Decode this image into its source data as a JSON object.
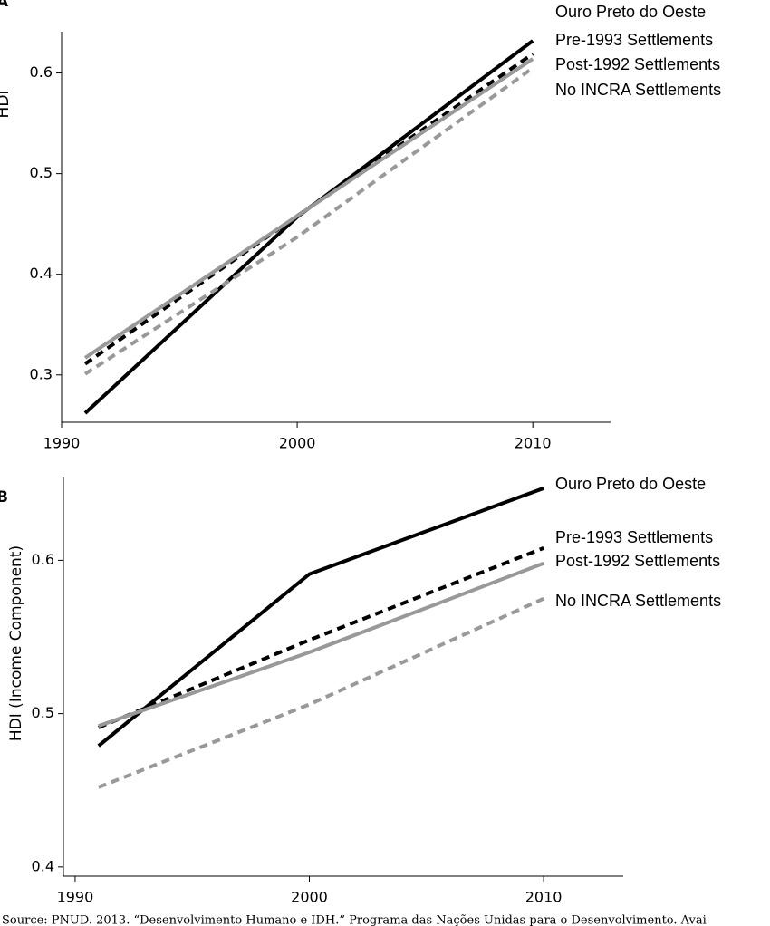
{
  "chart_data": [
    {
      "type": "line",
      "panel": "A",
      "y_label": "HDI",
      "x": [
        1991,
        2000,
        2010
      ],
      "xlim": [
        1990,
        2013.3
      ],
      "xticks": [
        1990,
        2000,
        2010
      ],
      "ylim": [
        0.253,
        0.641
      ],
      "yticks": [
        0.3,
        0.4,
        0.5,
        0.6
      ],
      "series": [
        {
          "name": "Ouro Preto do Oeste",
          "color": "#000000",
          "dashed": false,
          "values": [
            0.262,
            0.457,
            0.632
          ]
        },
        {
          "name": "Pre-1993 Settlements",
          "color": "#000000",
          "dashed": true,
          "values": [
            0.311,
            0.458,
            0.619
          ]
        },
        {
          "name": "Post-1992 Settlements",
          "color": "#999999",
          "dashed": false,
          "values": [
            0.317,
            0.458,
            0.614
          ]
        },
        {
          "name": "No INCRA Settlements",
          "color": "#999999",
          "dashed": true,
          "values": [
            0.301,
            0.437,
            0.605
          ]
        }
      ]
    },
    {
      "type": "line",
      "panel": "B",
      "y_label": "HDI (Income Component)",
      "x": [
        1991,
        2000,
        2010
      ],
      "xlim": [
        1989.5,
        2013.4
      ],
      "xticks": [
        1990,
        2000,
        2010
      ],
      "ylim": [
        0.394,
        0.654
      ],
      "yticks": [
        0.4,
        0.5,
        0.6
      ],
      "series": [
        {
          "name": "Ouro Preto do Oeste",
          "color": "#000000",
          "dashed": false,
          "values": [
            0.479,
            0.591,
            0.647
          ]
        },
        {
          "name": "Pre-1993 Settlements",
          "color": "#000000",
          "dashed": true,
          "values": [
            0.491,
            0.548,
            0.608
          ]
        },
        {
          "name": "Post-1992 Settlements",
          "color": "#999999",
          "dashed": false,
          "values": [
            0.492,
            0.54,
            0.598
          ]
        },
        {
          "name": "No INCRA Settlements",
          "color": "#999999",
          "dashed": true,
          "values": [
            0.452,
            0.506,
            0.575
          ]
        }
      ]
    }
  ],
  "source": "Source: PNUD. 2013. “Desenvolvimento Humano e IDH.” Programa das Nações Unidas para o Desenvolvimento. Avai"
}
